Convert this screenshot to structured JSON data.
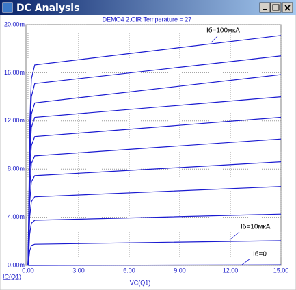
{
  "window": {
    "title": "DC Analysis"
  },
  "chart_data": {
    "type": "line",
    "title": "DEMO4  2.CIR Temperature = 27",
    "x_label": "VC(Q1)",
    "y_label": "IC(Q1)",
    "annotations": [
      "Iб=100мкА",
      "Iб=10мкА",
      "Iб=0"
    ],
    "x": [
      0,
      0.05,
      0.1,
      0.2,
      0.4,
      15
    ],
    "color": "#1a1ad0",
    "series": [
      {
        "values": [
          0,
          5.0,
          11.65,
          15.5,
          16.65,
          19.1
        ]
      },
      {
        "values": [
          0,
          4.5,
          10.6,
          14.0,
          15.1,
          17.4
        ]
      },
      {
        "values": [
          0,
          4.05,
          9.45,
          12.55,
          13.5,
          15.85
        ]
      },
      {
        "values": [
          0,
          3.7,
          8.6,
          11.45,
          12.3,
          14.0
        ]
      },
      {
        "values": [
          0,
          3.2,
          7.5,
          9.95,
          10.7,
          12.3
        ]
      },
      {
        "values": [
          0,
          2.75,
          6.35,
          8.45,
          9.1,
          10.5
        ]
      },
      {
        "values": [
          0,
          2.25,
          5.2,
          6.95,
          7.45,
          8.6
        ]
      },
      {
        "values": [
          0,
          1.7,
          4.0,
          5.3,
          5.7,
          6.55
        ]
      },
      {
        "values": [
          0,
          1.1,
          2.6,
          3.5,
          3.75,
          4.25
        ]
      },
      {
        "values": [
          0,
          0.5,
          1.2,
          1.65,
          1.75,
          2.05
        ]
      },
      {
        "values": [
          0,
          0,
          0,
          0,
          0,
          0.05
        ]
      }
    ],
    "xlim": [
      -0.12,
      15
    ],
    "ylim": [
      0,
      20
    ],
    "xticks": [
      {
        "value": 0,
        "label": "0.00"
      },
      {
        "value": 3,
        "label": "3.00"
      },
      {
        "value": 6,
        "label": "6.00"
      },
      {
        "value": 9,
        "label": "9.00"
      },
      {
        "value": 12,
        "label": "12.00"
      },
      {
        "value": 15,
        "label": "15.00"
      }
    ],
    "yticks": [
      {
        "value": 0,
        "label": "0.00m"
      },
      {
        "value": 4,
        "label": "4.00m"
      },
      {
        "value": 8,
        "label": "8.00m"
      },
      {
        "value": 12,
        "label": "12.00m"
      },
      {
        "value": 16,
        "label": "16.00m"
      },
      {
        "value": 20,
        "label": "20.00m"
      }
    ],
    "grid": true
  }
}
